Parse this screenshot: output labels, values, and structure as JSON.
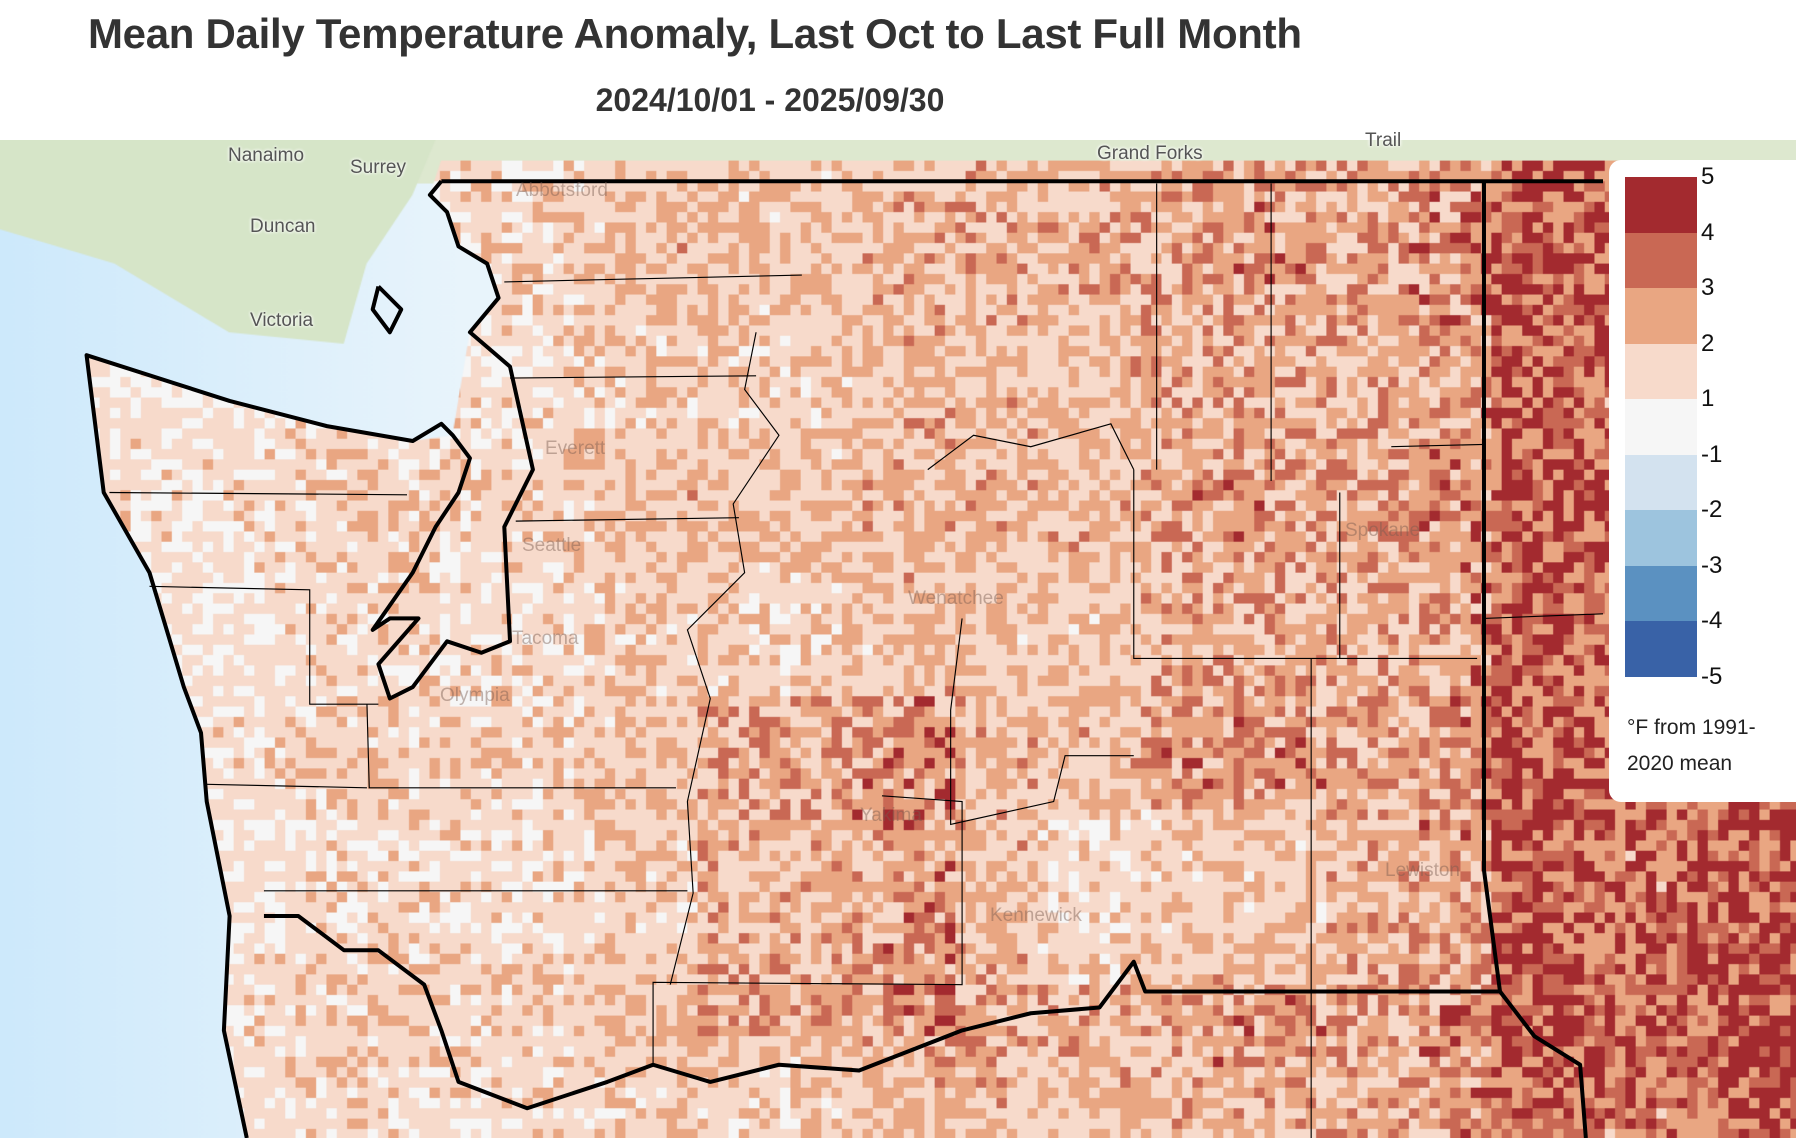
{
  "title": "Mean Daily Temperature Anomaly, Last Oct to Last Full Month",
  "subtitle": "2024/10/01 - 2025/09/30",
  "legend": {
    "ticks": [
      "5",
      "4",
      "3",
      "2",
      "1",
      "-1",
      "-2",
      "-3",
      "-4",
      "-5"
    ],
    "bins": [
      {
        "range": "4 to 5",
        "color": "#a32a2f"
      },
      {
        "range": "3 to 4",
        "color": "#c96854"
      },
      {
        "range": "2 to 3",
        "color": "#e9a682"
      },
      {
        "range": "1 to 2",
        "color": "#f7dacb"
      },
      {
        "range": "-1 to 1",
        "color": "#f6f6f6"
      },
      {
        "range": "-2 to -1",
        "color": "#d3e2ef"
      },
      {
        "range": "-3 to -2",
        "color": "#9dc4de"
      },
      {
        "range": "-4 to -3",
        "color": "#5b91c1"
      },
      {
        "range": "-5 to -4",
        "color": "#3962a7"
      }
    ],
    "unit": "°F from 1991-2020 mean"
  },
  "map_labels": {
    "nanaimo": "Nanaimo",
    "surrey": "Surrey",
    "duncan": "Duncan",
    "victoria": "Victoria",
    "grand_forks": "Grand Forks",
    "trail": "Trail",
    "seattle": "Seattle",
    "tacoma": "Tacoma",
    "everett": "Everett",
    "spokane": "Spokane",
    "kennewick": "Kennewick",
    "wenatchee": "Wenatchee",
    "olympia": "Olympia",
    "yakima": "Yakima",
    "lewiston": "Lewiston",
    "abbotsford": "Abbotsford"
  }
}
